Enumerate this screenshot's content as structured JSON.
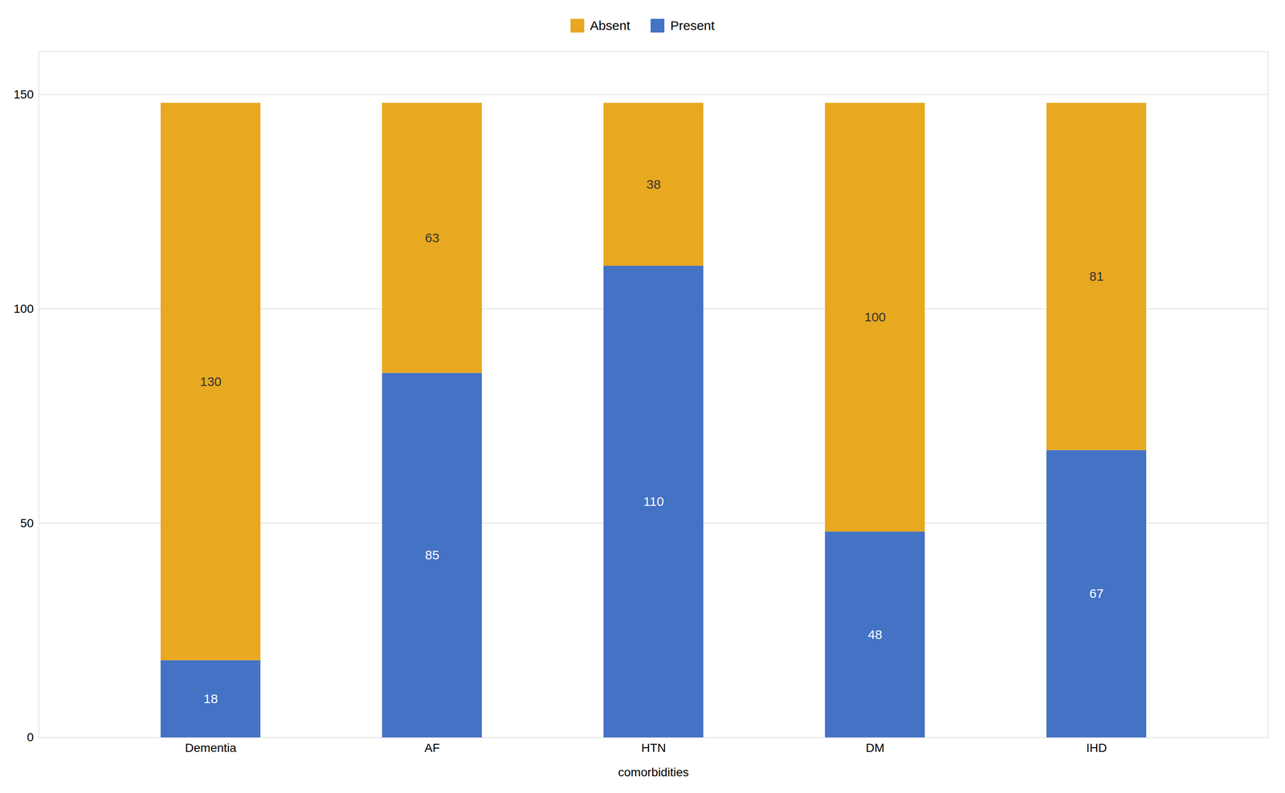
{
  "chart_data": {
    "type": "bar",
    "stacked": true,
    "categories": [
      "Dementia",
      "AF",
      "HTN",
      "DM",
      "IHD"
    ],
    "series": [
      {
        "name": "Present",
        "color": "#4472C4",
        "values": [
          18,
          85,
          110,
          48,
          67
        ]
      },
      {
        "name": "Absent",
        "color": "#E8A820",
        "values": [
          130,
          63,
          38,
          100,
          81
        ]
      }
    ],
    "xlabel": "comorbidities",
    "ylim": [
      0,
      160
    ],
    "yticks": [
      0,
      50,
      100,
      150
    ],
    "grid": true,
    "data_labels": true,
    "legend": "top"
  }
}
